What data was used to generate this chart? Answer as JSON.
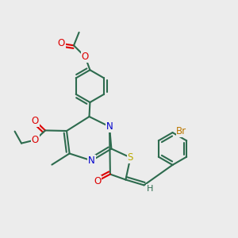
{
  "bg_color": "#ececec",
  "bond_color": "#2d6b4e",
  "bond_width": 1.5,
  "atom_colors": {
    "O": "#dd0000",
    "N": "#0000cc",
    "S": "#bbaa00",
    "Br": "#bb7700",
    "C": "#2d6b4e",
    "H": "#2d6b4e"
  },
  "dbo": 0.012
}
